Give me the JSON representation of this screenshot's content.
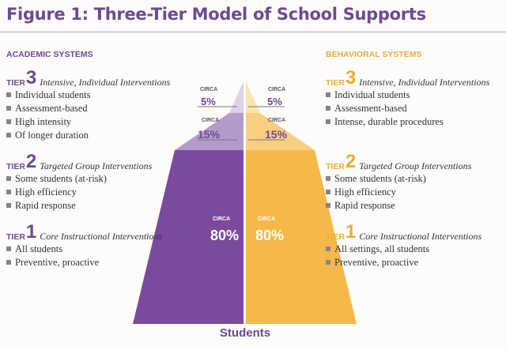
{
  "title": "Figure 1: Three-Tier Model of School Supports",
  "colors": {
    "purple_dark": "#7b4a9c",
    "purple_mid": "#b39bcb",
    "purple_light": "#ddd1e7",
    "yellow_dark": "#f6b84a",
    "yellow_mid": "#f8ce80",
    "yellow_light": "#fbe3ae",
    "title": "#6e4a8e"
  },
  "academic": {
    "heading": "ACADEMIC SYSTEMS",
    "tiers": [
      {
        "word": "TIER",
        "num": "3",
        "desc": "Intensive, Individual Interventions",
        "items": [
          "Individual students",
          "Assessment-based",
          "High intensity",
          "Of longer duration"
        ]
      },
      {
        "word": "TIER",
        "num": "2",
        "desc": "Targeted Group Interventions",
        "items": [
          "Some students (at-risk)",
          "High efficiency",
          "Rapid response"
        ]
      },
      {
        "word": "TIER",
        "num": "1",
        "desc": "Core Instructional Interventions",
        "items": [
          "All students",
          "Preventive,  proactive"
        ]
      }
    ]
  },
  "behavioral": {
    "heading": "BEHAVIORAL SYSTEMS",
    "tiers": [
      {
        "word": "TIER",
        "num": "3",
        "desc": "Intensive, Individual Interventions",
        "items": [
          "Individual students",
          "Assessment-based",
          "Intense, durable procedures"
        ]
      },
      {
        "word": "TIER",
        "num": "2",
        "desc": "Targeted Group Interventions",
        "items": [
          "Some students (at-risk)",
          "High efficiency",
          "Rapid response"
        ]
      },
      {
        "word": "TIER",
        "num": "1",
        "desc": "Core Instructional Interventions",
        "items": [
          "All settings, all students",
          "Preventive,  proactive"
        ]
      }
    ]
  },
  "pyramid": {
    "circa": "CIRCA",
    "tier3_pct": "5%",
    "tier2_pct": "15%",
    "tier1_pct": "80%"
  },
  "base_label": "Students"
}
